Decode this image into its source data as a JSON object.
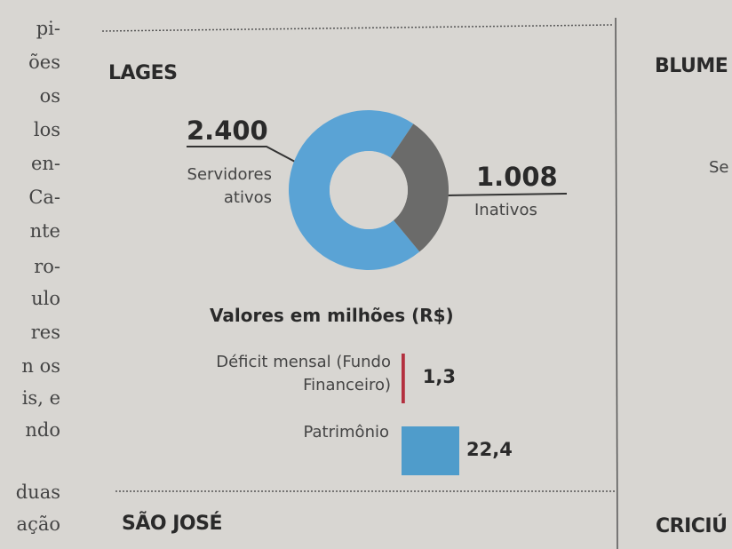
{
  "sections": {
    "main": "LAGES",
    "next": "SÃO JOSÉ",
    "right_top": "BLUME",
    "right_label": "Se",
    "right_bottom": "CRICIÚ"
  },
  "column_text": [
    "pi-",
    "ões",
    "os",
    "los",
    "en-",
    "Ca-",
    "nte",
    "ro-",
    "ulo",
    "res",
    "n os",
    "is, e",
    "ndo",
    "duas",
    "ação"
  ],
  "chart_data": [
    {
      "type": "pie",
      "donut": true,
      "categories": [
        "Servidores ativos",
        "Inativos"
      ],
      "values": [
        2400,
        1008
      ],
      "value_labels": [
        "2.400",
        "1.008"
      ],
      "colors": [
        "#5aa3d5",
        "#6b6b6a"
      ]
    },
    {
      "type": "bar",
      "title": "Valores em milhões (R$)",
      "categories": [
        "Déficit mensal (Fundo Financeiro)",
        "Patrimônio"
      ],
      "values": [
        1.3,
        22.4
      ],
      "value_labels": [
        "1,3",
        "22,4"
      ],
      "colors": [
        "#b3303f",
        "#4f9ccb"
      ]
    }
  ]
}
